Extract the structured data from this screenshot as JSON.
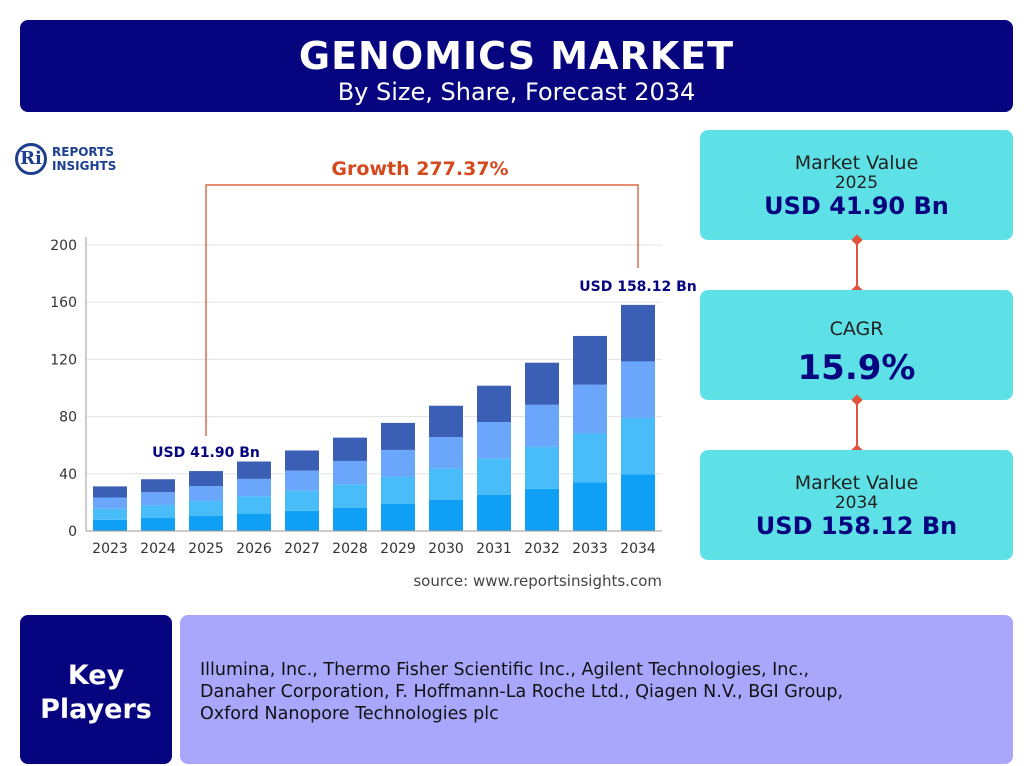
{
  "header": {
    "title": "GENOMICS MARKET",
    "subtitle": "By Size, Share, Forecast 2034"
  },
  "logo": {
    "mark": "Ri",
    "line1": "REPORTS",
    "line2": "INSIGHTS"
  },
  "growth_label": "Growth 277.37%",
  "source": "source: www.reportsinsights.com",
  "cards": {
    "value2025": {
      "label": "Market Value",
      "year": "2025",
      "value": "USD 41.90 Bn"
    },
    "cagr": {
      "label": "CAGR",
      "value": "15.9%"
    },
    "value2034": {
      "label": "Market Value",
      "year": "2034",
      "value": "USD 158.12 Bn"
    }
  },
  "key_players": {
    "title_line1": "Key",
    "title_line2": "Players",
    "lines": [
      "Illumina, Inc., Thermo Fisher Scientific Inc., Agilent Technologies, Inc.,",
      "Danaher Corporation, F. Hoffmann-La Roche Ltd., Qiagen N.V., BGI Group,",
      "Oxford Nanopore Technologies plc"
    ]
  },
  "colors": {
    "navy": "#06047e",
    "cyan": "#5ee1e6",
    "lavender": "#a9a7fb",
    "accent": "#d44a1e",
    "seg1": "#0fa0f5",
    "seg2": "#49bdfa",
    "seg3": "#6aa6fb",
    "seg4": "#3a5fb4"
  },
  "chart_data": {
    "type": "bar",
    "stacked": true,
    "categories": [
      "2023",
      "2024",
      "2025",
      "2026",
      "2027",
      "2028",
      "2029",
      "2030",
      "2031",
      "2032",
      "2033",
      "2034"
    ],
    "totals": [
      31.2,
      36.2,
      41.9,
      48.6,
      56.3,
      65.3,
      75.6,
      87.6,
      101.6,
      117.7,
      136.4,
      158.12
    ],
    "segment_shares": [
      0.25,
      0.25,
      0.25,
      0.25
    ],
    "ylim": [
      0,
      200
    ],
    "yticks": [
      0,
      40,
      80,
      120,
      160,
      200
    ],
    "grid": true,
    "annotations": [
      {
        "category": "2025",
        "label": "USD 41.90 Bn"
      },
      {
        "category": "2034",
        "label": "USD 158.12 Bn"
      }
    ]
  }
}
